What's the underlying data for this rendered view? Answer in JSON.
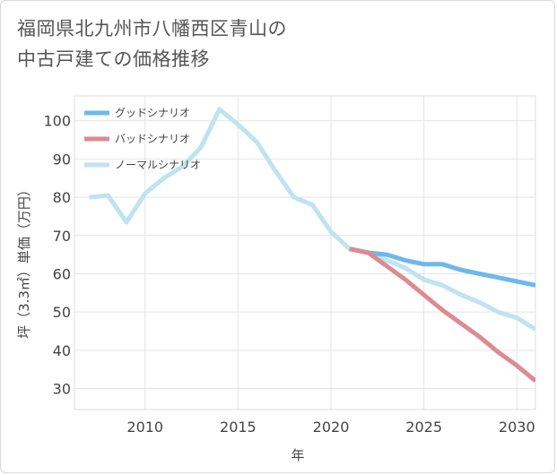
{
  "header": {
    "title_line1": "福岡県北九州市八幡西区青山の",
    "title_line2": "中古戸建ての価格推移"
  },
  "chart_data": {
    "type": "line",
    "title": "福岡県北九州市八幡西区青山の中古戸建ての価格推移",
    "xlabel": "年",
    "ylabel": "坪（3.3㎡）単価（万円）",
    "xlim": [
      2006.2,
      2031
    ],
    "ylim": [
      24.5,
      106.5
    ],
    "xticks": [
      2010,
      2015,
      2020,
      2025,
      2030
    ],
    "yticks": [
      30,
      40,
      50,
      60,
      70,
      80,
      90,
      100
    ],
    "grid": true,
    "legend_position": "top-left",
    "series": [
      {
        "name": "ノーマルシナリオ",
        "color": "#bfe3f0",
        "x": [
          2007,
          2008,
          2009,
          2010,
          2011,
          2012,
          2013,
          2014,
          2015,
          2016,
          2017,
          2018,
          2019,
          2020,
          2021,
          2022,
          2023,
          2024,
          2025,
          2026,
          2027,
          2028,
          2029,
          2030,
          2031
        ],
        "values": [
          80,
          80.5,
          73.5,
          81,
          85,
          88,
          93,
          103,
          99,
          94.5,
          87,
          80,
          78,
          71,
          66.5,
          65.5,
          63.5,
          61.5,
          58.5,
          57,
          54.5,
          52.5,
          50,
          48.5,
          45.5
        ]
      },
      {
        "name": "グッドシナリオ",
        "color": "#6db8ec",
        "x": [
          2021,
          2022,
          2023,
          2024,
          2025,
          2026,
          2027,
          2028,
          2029,
          2030,
          2031
        ],
        "values": [
          66.5,
          65.5,
          65,
          63.5,
          62.5,
          62.5,
          61,
          60,
          59,
          58,
          57
        ]
      },
      {
        "name": "バッドシナリオ",
        "color": "#de8a92",
        "x": [
          2021,
          2022,
          2023,
          2024,
          2025,
          2026,
          2027,
          2028,
          2029,
          2030,
          2031
        ],
        "values": [
          66.5,
          65.5,
          62,
          58.5,
          54.5,
          50.5,
          47,
          43.5,
          39.5,
          36,
          32
        ]
      }
    ],
    "legend_order": [
      "グッドシナリオ",
      "バッドシナリオ",
      "ノーマルシナリオ"
    ]
  }
}
